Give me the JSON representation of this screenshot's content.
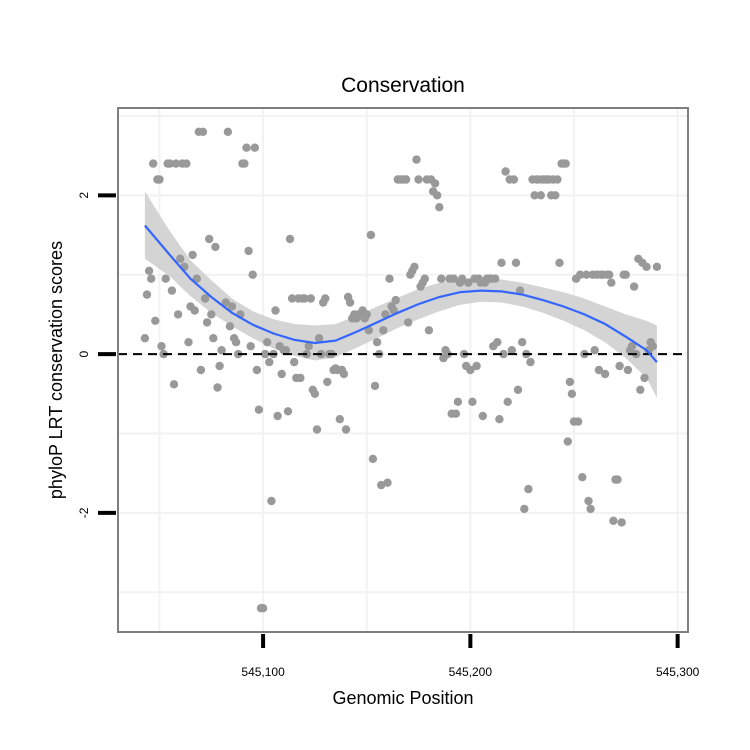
{
  "chart_data": {
    "type": "scatter",
    "title": "Conservation",
    "xlabel": "Genomic Position",
    "ylabel": "phyloP LRT conservation scores",
    "xlim": [
      545030,
      545305
    ],
    "ylim": [
      -3.5,
      3.1
    ],
    "xticks": [
      {
        "value": 545100,
        "label": "545,100"
      },
      {
        "value": 545200,
        "label": "545,200"
      },
      {
        "value": 545300,
        "label": "545,300"
      }
    ],
    "yticks": [
      {
        "value": -2,
        "label": "-2"
      },
      {
        "value": 0,
        "label": "0"
      },
      {
        "value": 2,
        "label": "2"
      }
    ],
    "grid": true,
    "reference_line": {
      "y": 0,
      "style": "dashed"
    },
    "colors": {
      "points": "#999999",
      "smooth": "#3366ff",
      "band": "#cccccc",
      "frame": "#7f7f7f",
      "grid": "#f2f2f2"
    },
    "points": [
      {
        "x": 545043,
        "y": 0.2
      },
      {
        "x": 545044,
        "y": 0.75
      },
      {
        "x": 545045,
        "y": 1.05
      },
      {
        "x": 545046,
        "y": 0.95
      },
      {
        "x": 545047,
        "y": 2.4
      },
      {
        "x": 545048,
        "y": 0.42
      },
      {
        "x": 545049,
        "y": 2.2
      },
      {
        "x": 545050,
        "y": 2.2
      },
      {
        "x": 545051,
        "y": 0.1
      },
      {
        "x": 545052,
        "y": 0.0
      },
      {
        "x": 545053,
        "y": 0.95
      },
      {
        "x": 545054,
        "y": 2.4
      },
      {
        "x": 545055,
        "y": 2.4
      },
      {
        "x": 545056,
        "y": 0.8
      },
      {
        "x": 545057,
        "y": -0.38
      },
      {
        "x": 545058,
        "y": 2.4
      },
      {
        "x": 545059,
        "y": 0.5
      },
      {
        "x": 545060,
        "y": 1.2
      },
      {
        "x": 545061,
        "y": 2.4
      },
      {
        "x": 545062,
        "y": 1.1
      },
      {
        "x": 545063,
        "y": 2.4
      },
      {
        "x": 545064,
        "y": 0.15
      },
      {
        "x": 545065,
        "y": 0.6
      },
      {
        "x": 545066,
        "y": 1.25
      },
      {
        "x": 545067,
        "y": 0.55
      },
      {
        "x": 545068,
        "y": 0.95
      },
      {
        "x": 545069,
        "y": 2.8
      },
      {
        "x": 545070,
        "y": -0.2
      },
      {
        "x": 545071,
        "y": 2.8
      },
      {
        "x": 545072,
        "y": 0.7
      },
      {
        "x": 545073,
        "y": 0.4
      },
      {
        "x": 545074,
        "y": 1.45
      },
      {
        "x": 545075,
        "y": 0.5
      },
      {
        "x": 545076,
        "y": 0.2
      },
      {
        "x": 545077,
        "y": 1.35
      },
      {
        "x": 545078,
        "y": -0.42
      },
      {
        "x": 545079,
        "y": -0.15
      },
      {
        "x": 545080,
        "y": 0.05
      },
      {
        "x": 545082,
        "y": 0.65
      },
      {
        "x": 545083,
        "y": 2.8
      },
      {
        "x": 545084,
        "y": 0.35
      },
      {
        "x": 545085,
        "y": 0.6
      },
      {
        "x": 545086,
        "y": 0.2
      },
      {
        "x": 545087,
        "y": 0.15
      },
      {
        "x": 545088,
        "y": 0.0
      },
      {
        "x": 545089,
        "y": 0.5
      },
      {
        "x": 545090,
        "y": 2.4
      },
      {
        "x": 545091,
        "y": 2.4
      },
      {
        "x": 545092,
        "y": 2.6
      },
      {
        "x": 545093,
        "y": 1.3
      },
      {
        "x": 545094,
        "y": 0.1
      },
      {
        "x": 545095,
        "y": 1.0
      },
      {
        "x": 545096,
        "y": 2.6
      },
      {
        "x": 545097,
        "y": -0.2
      },
      {
        "x": 545098,
        "y": -0.7
      },
      {
        "x": 545099,
        "y": -3.2
      },
      {
        "x": 545100,
        "y": -3.2
      },
      {
        "x": 545101,
        "y": 0.0
      },
      {
        "x": 545102,
        "y": 0.15
      },
      {
        "x": 545103,
        "y": -0.1
      },
      {
        "x": 545104,
        "y": -1.85
      },
      {
        "x": 545105,
        "y": 0.0
      },
      {
        "x": 545106,
        "y": 0.55
      },
      {
        "x": 545107,
        "y": -0.78
      },
      {
        "x": 545108,
        "y": 0.1
      },
      {
        "x": 545109,
        "y": -0.25
      },
      {
        "x": 545110,
        "y": 0.05
      },
      {
        "x": 545111,
        "y": 0.05
      },
      {
        "x": 545112,
        "y": -0.72
      },
      {
        "x": 545113,
        "y": 1.45
      },
      {
        "x": 545114,
        "y": 0.7
      },
      {
        "x": 545115,
        "y": -0.1
      },
      {
        "x": 545116,
        "y": -0.3
      },
      {
        "x": 545117,
        "y": 0.7
      },
      {
        "x": 545118,
        "y": -0.3
      },
      {
        "x": 545119,
        "y": 0.7
      },
      {
        "x": 545120,
        "y": 0.7
      },
      {
        "x": 545121,
        "y": 0.0
      },
      {
        "x": 545122,
        "y": 0.1
      },
      {
        "x": 545123,
        "y": 0.7
      },
      {
        "x": 545124,
        "y": -0.45
      },
      {
        "x": 545125,
        "y": -0.5
      },
      {
        "x": 545126,
        "y": -0.95
      },
      {
        "x": 545127,
        "y": 0.2
      },
      {
        "x": 545128,
        "y": 0.0
      },
      {
        "x": 545129,
        "y": 0.65
      },
      {
        "x": 545130,
        "y": 0.7
      },
      {
        "x": 545131,
        "y": -0.35
      },
      {
        "x": 545132,
        "y": 0.0
      },
      {
        "x": 545133,
        "y": 0.0
      },
      {
        "x": 545134,
        "y": -0.2
      },
      {
        "x": 545135,
        "y": -0.18
      },
      {
        "x": 545136,
        "y": -0.2
      },
      {
        "x": 545137,
        "y": -0.82
      },
      {
        "x": 545138,
        "y": -0.2
      },
      {
        "x": 545139,
        "y": -0.25
      },
      {
        "x": 545140,
        "y": -0.95
      },
      {
        "x": 545141,
        "y": 0.72
      },
      {
        "x": 545142,
        "y": 0.65
      },
      {
        "x": 545143,
        "y": 0.45
      },
      {
        "x": 545144,
        "y": 0.5
      },
      {
        "x": 545145,
        "y": 0.45
      },
      {
        "x": 545146,
        "y": 0.5
      },
      {
        "x": 545147,
        "y": 0.5
      },
      {
        "x": 545148,
        "y": 0.55
      },
      {
        "x": 545149,
        "y": 0.45
      },
      {
        "x": 545150,
        "y": 0.5
      },
      {
        "x": 545151,
        "y": 0.3
      },
      {
        "x": 545152,
        "y": 1.5
      },
      {
        "x": 545153,
        "y": -1.32
      },
      {
        "x": 545154,
        "y": -0.4
      },
      {
        "x": 545155,
        "y": 0.15
      },
      {
        "x": 545156,
        "y": 0.0
      },
      {
        "x": 545157,
        "y": -1.65
      },
      {
        "x": 545158,
        "y": 0.3
      },
      {
        "x": 545159,
        "y": 0.5
      },
      {
        "x": 545160,
        "y": -1.62
      },
      {
        "x": 545161,
        "y": 0.95
      },
      {
        "x": 545162,
        "y": 0.6
      },
      {
        "x": 545163,
        "y": 0.55
      },
      {
        "x": 545164,
        "y": 0.68
      },
      {
        "x": 545165,
        "y": 2.2
      },
      {
        "x": 545166,
        "y": 2.2
      },
      {
        "x": 545167,
        "y": 2.2
      },
      {
        "x": 545168,
        "y": 2.2
      },
      {
        "x": 545169,
        "y": 2.2
      },
      {
        "x": 545170,
        "y": 0.4
      },
      {
        "x": 545171,
        "y": 1.0
      },
      {
        "x": 545172,
        "y": 1.05
      },
      {
        "x": 545173,
        "y": 1.1
      },
      {
        "x": 545174,
        "y": 2.45
      },
      {
        "x": 545175,
        "y": 2.2
      },
      {
        "x": 545176,
        "y": 0.85
      },
      {
        "x": 545177,
        "y": 0.9
      },
      {
        "x": 545178,
        "y": 0.95
      },
      {
        "x": 545179,
        "y": 2.2
      },
      {
        "x": 545180,
        "y": 0.3
      },
      {
        "x": 545181,
        "y": 2.2
      },
      {
        "x": 545182,
        "y": 2.05
      },
      {
        "x": 545183,
        "y": 2.15
      },
      {
        "x": 545184,
        "y": 2.0
      },
      {
        "x": 545185,
        "y": 1.85
      },
      {
        "x": 545186,
        "y": 0.95
      },
      {
        "x": 545187,
        "y": -0.05
      },
      {
        "x": 545188,
        "y": 0.05
      },
      {
        "x": 545189,
        "y": 0.0
      },
      {
        "x": 545190,
        "y": 0.95
      },
      {
        "x": 545191,
        "y": -0.75
      },
      {
        "x": 545192,
        "y": 0.95
      },
      {
        "x": 545193,
        "y": -0.75
      },
      {
        "x": 545194,
        "y": -0.6
      },
      {
        "x": 545195,
        "y": 0.9
      },
      {
        "x": 545196,
        "y": 0.95
      },
      {
        "x": 545197,
        "y": 0.0
      },
      {
        "x": 545198,
        "y": -0.15
      },
      {
        "x": 545199,
        "y": 0.9
      },
      {
        "x": 545200,
        "y": -0.2
      },
      {
        "x": 545201,
        "y": -0.6
      },
      {
        "x": 545202,
        "y": 0.95
      },
      {
        "x": 545203,
        "y": -0.15
      },
      {
        "x": 545204,
        "y": 0.95
      },
      {
        "x": 545205,
        "y": 0.9
      },
      {
        "x": 545206,
        "y": -0.78
      },
      {
        "x": 545207,
        "y": 0.9
      },
      {
        "x": 545208,
        "y": 0.95
      },
      {
        "x": 545209,
        "y": 0.95
      },
      {
        "x": 545210,
        "y": 0.95
      },
      {
        "x": 545211,
        "y": 0.1
      },
      {
        "x": 545212,
        "y": 0.95
      },
      {
        "x": 545213,
        "y": 0.15
      },
      {
        "x": 545214,
        "y": -0.82
      },
      {
        "x": 545215,
        "y": 1.15
      },
      {
        "x": 545216,
        "y": 0.0
      },
      {
        "x": 545217,
        "y": 2.3
      },
      {
        "x": 545218,
        "y": -0.6
      },
      {
        "x": 545219,
        "y": 2.2
      },
      {
        "x": 545220,
        "y": 0.05
      },
      {
        "x": 545221,
        "y": 2.2
      },
      {
        "x": 545222,
        "y": 1.15
      },
      {
        "x": 545223,
        "y": -0.45
      },
      {
        "x": 545224,
        "y": 0.8
      },
      {
        "x": 545225,
        "y": 0.15
      },
      {
        "x": 545226,
        "y": -1.95
      },
      {
        "x": 545227,
        "y": 0.0
      },
      {
        "x": 545228,
        "y": -1.7
      },
      {
        "x": 545229,
        "y": -0.1
      },
      {
        "x": 545230,
        "y": 2.2
      },
      {
        "x": 545231,
        "y": 2.0
      },
      {
        "x": 545232,
        "y": 2.2
      },
      {
        "x": 545233,
        "y": 2.2
      },
      {
        "x": 545234,
        "y": 2.0
      },
      {
        "x": 545235,
        "y": 2.2
      },
      {
        "x": 545236,
        "y": 2.2
      },
      {
        "x": 545237,
        "y": 2.2
      },
      {
        "x": 545238,
        "y": 2.2
      },
      {
        "x": 545239,
        "y": 2.0
      },
      {
        "x": 545240,
        "y": 2.2
      },
      {
        "x": 545241,
        "y": 2.0
      },
      {
        "x": 545242,
        "y": 2.2
      },
      {
        "x": 545243,
        "y": 1.15
      },
      {
        "x": 545244,
        "y": 2.4
      },
      {
        "x": 545245,
        "y": 2.4
      },
      {
        "x": 545246,
        "y": 2.4
      },
      {
        "x": 545247,
        "y": -1.1
      },
      {
        "x": 545248,
        "y": -0.35
      },
      {
        "x": 545249,
        "y": -0.5
      },
      {
        "x": 545250,
        "y": -0.85
      },
      {
        "x": 545251,
        "y": 0.95
      },
      {
        "x": 545252,
        "y": -0.85
      },
      {
        "x": 545253,
        "y": 1.0
      },
      {
        "x": 545254,
        "y": -1.55
      },
      {
        "x": 545255,
        "y": 0.0
      },
      {
        "x": 545256,
        "y": 1.0
      },
      {
        "x": 545257,
        "y": -1.85
      },
      {
        "x": 545258,
        "y": -1.95
      },
      {
        "x": 545259,
        "y": 1.0
      },
      {
        "x": 545260,
        "y": 0.05
      },
      {
        "x": 545261,
        "y": 1.0
      },
      {
        "x": 545262,
        "y": -0.2
      },
      {
        "x": 545263,
        "y": 1.0
      },
      {
        "x": 545264,
        "y": 1.0
      },
      {
        "x": 545265,
        "y": -0.25
      },
      {
        "x": 545266,
        "y": 1.0
      },
      {
        "x": 545267,
        "y": 1.0
      },
      {
        "x": 545268,
        "y": 0.9
      },
      {
        "x": 545269,
        "y": -2.1
      },
      {
        "x": 545270,
        "y": -1.58
      },
      {
        "x": 545271,
        "y": -1.58
      },
      {
        "x": 545272,
        "y": -0.15
      },
      {
        "x": 545273,
        "y": -2.12
      },
      {
        "x": 545274,
        "y": 1.0
      },
      {
        "x": 545275,
        "y": 1.0
      },
      {
        "x": 545276,
        "y": -0.2
      },
      {
        "x": 545277,
        "y": 0.05
      },
      {
        "x": 545278,
        "y": 0.1
      },
      {
        "x": 545279,
        "y": 0.85
      },
      {
        "x": 545280,
        "y": 0.0
      },
      {
        "x": 545281,
        "y": 1.2
      },
      {
        "x": 545282,
        "y": -0.45
      },
      {
        "x": 545283,
        "y": 1.15
      },
      {
        "x": 545284,
        "y": -0.3
      },
      {
        "x": 545285,
        "y": 1.1
      },
      {
        "x": 545286,
        "y": 0.05
      },
      {
        "x": 545287,
        "y": 0.15
      },
      {
        "x": 545288,
        "y": 0.1
      },
      {
        "x": 545290,
        "y": 1.1
      }
    ],
    "smooth": {
      "x": [
        545043,
        545055,
        545065,
        545075,
        545085,
        545095,
        545105,
        545115,
        545125,
        545135,
        545145,
        545155,
        545165,
        545175,
        545185,
        545195,
        545205,
        545215,
        545225,
        545235,
        545245,
        545255,
        545265,
        545275,
        545285,
        545290
      ],
      "y": [
        1.62,
        1.25,
        0.95,
        0.72,
        0.52,
        0.37,
        0.26,
        0.18,
        0.14,
        0.17,
        0.28,
        0.4,
        0.52,
        0.63,
        0.72,
        0.78,
        0.8,
        0.79,
        0.75,
        0.68,
        0.6,
        0.5,
        0.38,
        0.22,
        0.05,
        -0.1
      ],
      "lower": [
        1.2,
        0.98,
        0.73,
        0.52,
        0.35,
        0.2,
        0.07,
        -0.02,
        -0.08,
        -0.04,
        0.08,
        0.2,
        0.33,
        0.44,
        0.54,
        0.62,
        0.66,
        0.65,
        0.6,
        0.52,
        0.42,
        0.3,
        0.15,
        -0.05,
        -0.3,
        -0.55
      ],
      "upper": [
        2.05,
        1.55,
        1.18,
        0.93,
        0.7,
        0.54,
        0.44,
        0.38,
        0.36,
        0.38,
        0.48,
        0.6,
        0.71,
        0.82,
        0.9,
        0.95,
        0.96,
        0.94,
        0.9,
        0.84,
        0.78,
        0.7,
        0.6,
        0.5,
        0.42,
        0.36
      ]
    }
  }
}
